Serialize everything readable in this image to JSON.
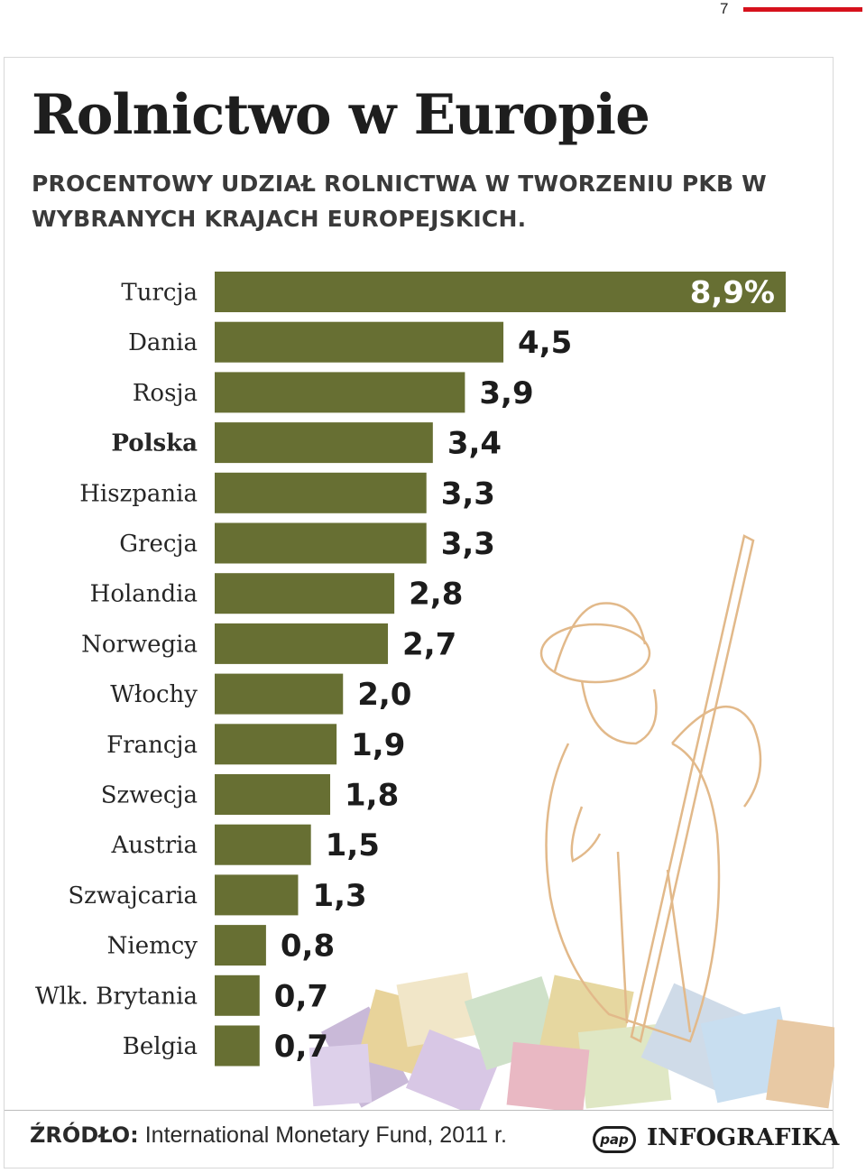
{
  "page": {
    "number": "7",
    "accent_color": "#d6111c"
  },
  "header": {
    "title": "Rolnictwo w Europie",
    "subtitle": "PROCENTOWY UDZIAŁ ROLNICTWA W TWORZENIU PKB W WYBRANYCH KRAJACH EUROPEJSKICH."
  },
  "chart_data": {
    "type": "bar",
    "orientation": "horizontal",
    "title": "",
    "categories": [
      "Turcja",
      "Dania",
      "Rosja",
      "Polska",
      "Hiszpania",
      "Grecja",
      "Holandia",
      "Norwegia",
      "Włochy",
      "Francja",
      "Szwecja",
      "Austria",
      "Szwajcaria",
      "Niemcy",
      "Wlk. Brytania",
      "Belgia"
    ],
    "values": [
      8.9,
      4.5,
      3.9,
      3.4,
      3.3,
      3.3,
      2.8,
      2.7,
      2.0,
      1.9,
      1.8,
      1.5,
      1.3,
      0.8,
      0.7,
      0.7
    ],
    "value_labels": [
      "8,9%",
      "4,5",
      "3,9",
      "3,4",
      "3,3",
      "3,3",
      "2,8",
      "2,7",
      "2,0",
      "1,9",
      "1,8",
      "1,5",
      "1,3",
      "0,8",
      "0,7",
      "0,7"
    ],
    "highlight_category": "Polska",
    "bar_color": "#676f33",
    "xlim": [
      0,
      8.9
    ],
    "grid": false,
    "legend": "none"
  },
  "footer": {
    "source_label": "ŹRÓDŁO:",
    "source_text": "International Monetary Fund, 2011 r.",
    "logo_text": "pap",
    "brand": "INFOGRAFIKA"
  },
  "illustration": {
    "subject": "farmer with pitchfork over euro banknotes",
    "line_color": "#e2b98a"
  }
}
